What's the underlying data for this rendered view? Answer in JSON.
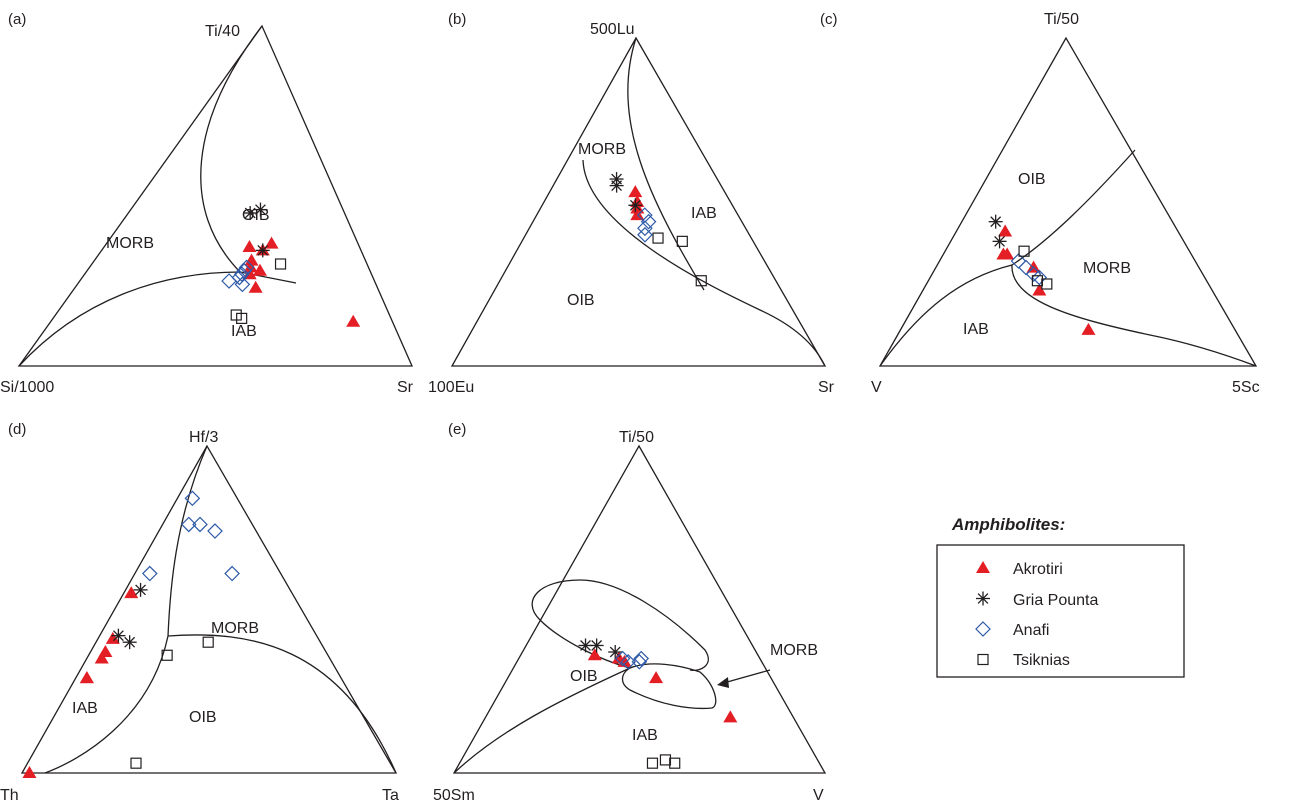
{
  "legend": {
    "title": "Amphibolites:",
    "entries": [
      {
        "label": "Akrotiri",
        "marker": "filled-triangle",
        "color": "#e31e24"
      },
      {
        "label": "Gria Pounta",
        "marker": "asterisk",
        "color": "#231f20"
      },
      {
        "label": "Anafi",
        "marker": "open-diamond",
        "color": "#2e5aa8"
      },
      {
        "label": "Tsiknias",
        "marker": "open-square",
        "color": "#231f20"
      }
    ]
  },
  "colors": {
    "akrotiri": "#e31e24",
    "gria_pounta": "#231f20",
    "anafi": "#2e5aa8",
    "tsiknias": "#231f20",
    "line": "#231f20"
  },
  "chart_data": [
    {
      "type": "ternary",
      "panel": "(a)",
      "vertices": {
        "top": "Ti/40",
        "left": "Si/1000",
        "right": "Sr"
      },
      "regions": [
        "MORB",
        "OIB",
        "IAB"
      ],
      "series": [
        {
          "name": "Akrotiri",
          "points": [
            [
              0.13,
              0.1,
              0.77
            ],
            [
              0.28,
              0.28,
              0.44
            ],
            [
              0.29,
              0.3,
              0.41
            ],
            [
              0.31,
              0.29,
              0.4
            ],
            [
              0.35,
              0.28,
              0.37
            ],
            [
              0.34,
              0.25,
              0.41
            ],
            [
              0.36,
              0.22,
              0.42
            ],
            [
              0.23,
              0.31,
              0.46
            ],
            [
              0.27,
              0.31,
              0.42
            ]
          ]
        },
        {
          "name": "Gria Pounta",
          "points": [
            [
              0.45,
              0.24,
              0.31
            ],
            [
              0.46,
              0.21,
              0.33
            ],
            [
              0.34,
              0.25,
              0.41
            ]
          ]
        },
        {
          "name": "Anafi",
          "points": [
            [
              0.29,
              0.31,
              0.4
            ],
            [
              0.28,
              0.32,
              0.4
            ],
            [
              0.27,
              0.33,
              0.4
            ],
            [
              0.26,
              0.34,
              0.4
            ],
            [
              0.25,
              0.37,
              0.38
            ],
            [
              0.24,
              0.34,
              0.42
            ]
          ]
        },
        {
          "name": "Tsiknias",
          "points": [
            [
              0.3,
              0.22,
              0.48
            ],
            [
              0.14,
              0.38,
              0.48
            ],
            [
              0.15,
              0.39,
              0.46
            ]
          ]
        }
      ]
    },
    {
      "type": "ternary",
      "panel": "(b)",
      "vertices": {
        "top": "500Lu",
        "left": "100Eu",
        "right": "Sr"
      },
      "regions": [
        "MORB",
        "IAB",
        "OIB"
      ],
      "series": [
        {
          "name": "Akrotiri",
          "points": [
            [
              0.53,
              0.24,
              0.23
            ],
            [
              0.5,
              0.25,
              0.25
            ],
            [
              0.48,
              0.26,
              0.26
            ],
            [
              0.46,
              0.27,
              0.27
            ]
          ]
        },
        {
          "name": "Gria Pounta",
          "points": [
            [
              0.55,
              0.28,
              0.17
            ],
            [
              0.57,
              0.27,
              0.16
            ],
            [
              0.49,
              0.26,
              0.25
            ]
          ]
        },
        {
          "name": "Anafi",
          "points": [
            [
              0.46,
              0.25,
              0.29
            ],
            [
              0.44,
              0.25,
              0.31
            ],
            [
              0.42,
              0.27,
              0.31
            ],
            [
              0.4,
              0.28,
              0.32
            ]
          ]
        },
        {
          "name": "Tsiknias",
          "points": [
            [
              0.39,
              0.25,
              0.36
            ],
            [
              0.38,
              0.19,
              0.43
            ],
            [
              0.26,
              0.2,
              0.54
            ]
          ]
        }
      ]
    },
    {
      "type": "ternary",
      "panel": "(c)",
      "vertices": {
        "top": "Ti/50",
        "left": "V",
        "right": "5Sc"
      },
      "regions": [
        "OIB",
        "MORB",
        "IAB"
      ],
      "series": [
        {
          "name": "Akrotiri",
          "points": [
            [
              0.41,
              0.46,
              0.13
            ],
            [
              0.34,
              0.5,
              0.16
            ],
            [
              0.34,
              0.49,
              0.17
            ],
            [
              0.3,
              0.44,
              0.26
            ],
            [
              0.23,
              0.46,
              0.31
            ],
            [
              0.11,
              0.39,
              0.5
            ]
          ]
        },
        {
          "name": "Gria Pounta",
          "points": [
            [
              0.44,
              0.47,
              0.09
            ],
            [
              0.38,
              0.49,
              0.13
            ]
          ]
        },
        {
          "name": "Anafi",
          "points": [
            [
              0.32,
              0.47,
              0.21
            ],
            [
              0.3,
              0.46,
              0.24
            ],
            [
              0.28,
              0.45,
              0.27
            ],
            [
              0.27,
              0.44,
              0.29
            ]
          ]
        },
        {
          "name": "Tsiknias",
          "points": [
            [
              0.35,
              0.44,
              0.21
            ],
            [
              0.26,
              0.45,
              0.29
            ],
            [
              0.25,
              0.43,
              0.32
            ]
          ]
        }
      ]
    },
    {
      "type": "ternary",
      "panel": "(d)",
      "vertices": {
        "top": "Hf/3",
        "left": "Th",
        "right": "Ta"
      },
      "regions": [
        "MORB",
        "IAB",
        "OIB"
      ],
      "series": [
        {
          "name": "Akrotiri",
          "points": [
            [
              0.0,
              0.98,
              0.02
            ],
            [
              0.55,
              0.43,
              0.02
            ],
            [
              0.41,
              0.55,
              0.04
            ],
            [
              0.37,
              0.59,
              0.04
            ],
            [
              0.35,
              0.61,
              0.04
            ],
            [
              0.29,
              0.68,
              0.03
            ],
            [
              0.29,
              0.68,
              0.03
            ]
          ]
        },
        {
          "name": "Gria Pounta",
          "points": [
            [
              0.56,
              0.4,
              0.04
            ],
            [
              0.42,
              0.53,
              0.05
            ],
            [
              0.4,
              0.51,
              0.09
            ]
          ]
        },
        {
          "name": "Anafi",
          "points": [
            [
              0.84,
              0.12,
              0.04
            ],
            [
              0.76,
              0.17,
              0.07
            ],
            [
              0.76,
              0.14,
              0.1
            ],
            [
              0.74,
              0.11,
              0.15
            ],
            [
              0.61,
              0.13,
              0.26
            ],
            [
              0.61,
              0.35,
              0.04
            ]
          ]
        },
        {
          "name": "Tsiknias",
          "points": [
            [
              0.4,
              0.3,
              0.3
            ],
            [
              0.36,
              0.43,
              0.21
            ],
            [
              0.03,
              0.68,
              0.29
            ]
          ]
        }
      ]
    },
    {
      "type": "ternary",
      "panel": "(e)",
      "vertices": {
        "top": "Ti/50",
        "left": "50Sm",
        "right": "V"
      },
      "regions": [
        "OIB",
        "MORB",
        "IAB"
      ],
      "series": [
        {
          "name": "Akrotiri",
          "points": [
            [
              0.36,
              0.44,
              0.2
            ],
            [
              0.35,
              0.38,
              0.27
            ],
            [
              0.34,
              0.37,
              0.29
            ],
            [
              0.29,
              0.31,
              0.4
            ],
            [
              0.17,
              0.17,
              0.66
            ]
          ]
        },
        {
          "name": "Gria Pounta",
          "points": [
            [
              0.39,
              0.45,
              0.16
            ],
            [
              0.39,
              0.42,
              0.19
            ],
            [
              0.37,
              0.38,
              0.25
            ]
          ]
        },
        {
          "name": "Anafi",
          "points": [
            [
              0.35,
              0.37,
              0.28
            ],
            [
              0.34,
              0.36,
              0.3
            ],
            [
              0.34,
              0.33,
              0.33
            ],
            [
              0.35,
              0.32,
              0.33
            ]
          ]
        },
        {
          "name": "Tsiknias",
          "points": [
            [
              0.03,
              0.45,
              0.52
            ],
            [
              0.04,
              0.41,
              0.55
            ],
            [
              0.03,
              0.39,
              0.58
            ]
          ]
        }
      ]
    }
  ]
}
